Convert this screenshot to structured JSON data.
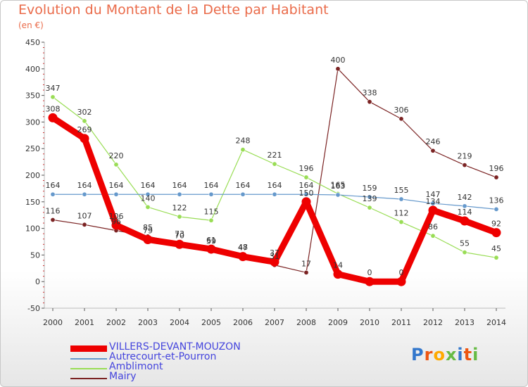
{
  "chart_data": {
    "type": "line",
    "title": "Evolution du Montant de la Dette par Habitant",
    "unit_label": "(en €)",
    "xlabel": "",
    "ylabel": "",
    "ylim": [
      -50,
      450
    ],
    "yticks": [
      -50,
      0,
      50,
      100,
      150,
      200,
      250,
      300,
      350,
      400,
      450
    ],
    "categories": [
      "2000",
      "2001",
      "2002",
      "2003",
      "2004",
      "2005",
      "2006",
      "2007",
      "2008",
      "2009",
      "2010",
      "2011",
      "2012",
      "2013",
      "2014"
    ],
    "series": [
      {
        "name": "Mairy",
        "color": "#7b2323",
        "values": [
          116,
          107,
          96,
          85,
          73,
          59,
          48,
          31,
          17,
          400,
          338,
          306,
          246,
          219,
          196
        ]
      },
      {
        "name": "Amblimont",
        "color": "#99dd55",
        "values": [
          347,
          302,
          220,
          140,
          122,
          115,
          248,
          221,
          196,
          165,
          139,
          112,
          86,
          55,
          45
        ]
      },
      {
        "name": "Autrecourt-et-Pourron",
        "color": "#6699cc",
        "values": [
          164,
          164,
          164,
          164,
          164,
          164,
          164,
          164,
          164,
          163,
          159,
          155,
          147,
          142,
          136
        ]
      },
      {
        "name": "VILLERS-DEVANT-MOUZON",
        "color": "#ee0000",
        "values": [
          308,
          269,
          106,
          79,
          70,
          61,
          47,
          37,
          150,
          14,
          0,
          0,
          134,
          114,
          92
        ]
      }
    ],
    "legend": [
      {
        "name": "VILLERS-DEVANT-MOUZON",
        "color": "#ee0000",
        "text_color": "#4444dd",
        "thick": true
      },
      {
        "name": "Autrecourt-et-Pourron",
        "color": "#6699cc",
        "text_color": "#4444dd",
        "thick": false
      },
      {
        "name": "Amblimont",
        "color": "#99dd55",
        "text_color": "#4444dd",
        "thick": false
      },
      {
        "name": "Mairy",
        "color": "#7b2323",
        "text_color": "#4444dd",
        "thick": false
      }
    ],
    "grid": false
  },
  "logo": {
    "text": "Proxiti",
    "colors": [
      "#3377cc",
      "#ee5511",
      "#ffaa00",
      "#66bb44",
      "#3377cc",
      "#ee5511",
      "#66bb44"
    ]
  }
}
